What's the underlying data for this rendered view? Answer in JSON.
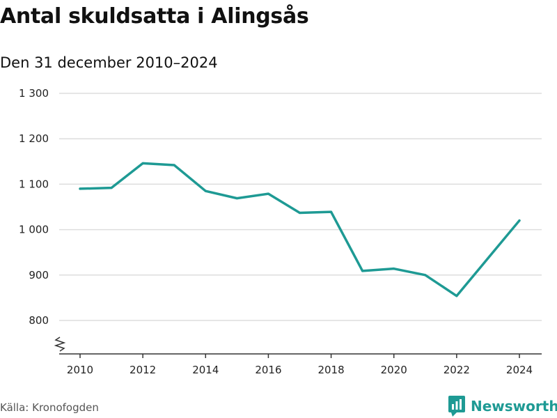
{
  "header": {
    "title": "Antal skuldsatta i Alingsås",
    "subtitle": "Den 31 december 2010–2024"
  },
  "footer": {
    "source": "Källa: Kronofogden",
    "brand": "Newsworthy",
    "brand_icon": "bar-chart-bubble-icon"
  },
  "colors": {
    "line": "#1e9a94",
    "grid": "#dddddd",
    "axis": "#333333"
  },
  "chart_data": {
    "type": "line",
    "title": "Antal skuldsatta i Alingsås",
    "subtitle": "Den 31 december 2010–2024",
    "xlabel": "",
    "ylabel": "",
    "x": [
      2010,
      2011,
      2012,
      2013,
      2014,
      2015,
      2016,
      2017,
      2018,
      2019,
      2020,
      2021,
      2022,
      2023,
      2024
    ],
    "series": [
      {
        "name": "Antal skuldsatta",
        "values": [
          1090,
          1092,
          1146,
          1142,
          1085,
          1069,
          1079,
          1037,
          1039,
          909,
          914,
          900,
          854,
          937,
          1020
        ]
      }
    ],
    "y_ticks": [
      800,
      900,
      1000,
      1100,
      1200,
      1300
    ],
    "y_tick_labels": [
      "800",
      "900",
      "1 000",
      "1 100",
      "1 200",
      "1 300"
    ],
    "x_ticks": [
      2010,
      2012,
      2014,
      2016,
      2018,
      2020,
      2022,
      2024
    ],
    "x_tick_labels": [
      "2010",
      "2012",
      "2014",
      "2016",
      "2018",
      "2020",
      "2022",
      "2024"
    ],
    "ylim": [
      800,
      1300
    ],
    "xlim": [
      2010,
      2024
    ],
    "axis_break": true,
    "grid": true
  }
}
